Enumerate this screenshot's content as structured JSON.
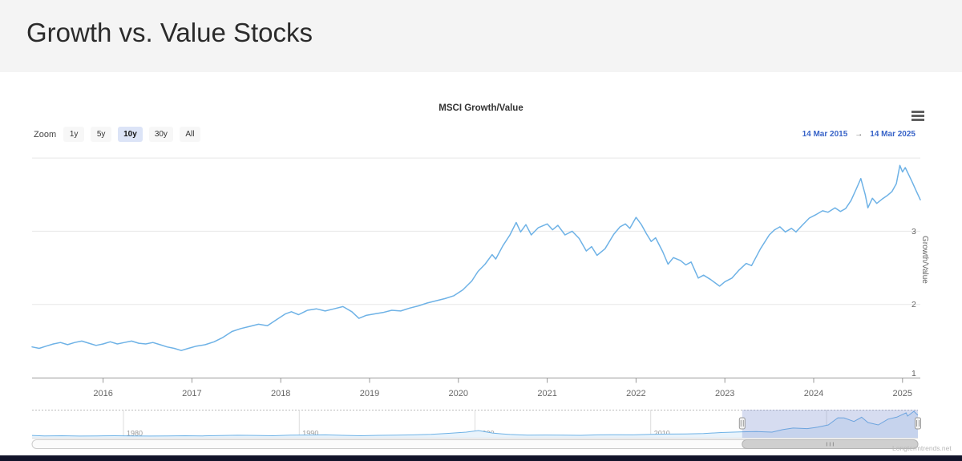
{
  "header": {
    "title": "Growth vs. Value Stocks"
  },
  "chart": {
    "title": "MSCI Growth/Value",
    "range_selector": {
      "zoom_label": "Zoom",
      "buttons": [
        {
          "label": "1y",
          "selected": false
        },
        {
          "label": "5y",
          "selected": false
        },
        {
          "label": "10y",
          "selected": true
        },
        {
          "label": "30y",
          "selected": false
        },
        {
          "label": "All",
          "selected": false
        }
      ],
      "from_date": "14 Mar 2015",
      "arrow": "→",
      "to_date": "14 Mar 2025"
    },
    "y_axis_title": "Growth/Value",
    "watermark": "Longtermtrends.net",
    "colors": {
      "line": "#6eb2e6",
      "grid": "#e7e7e7",
      "axis": "#999999",
      "tick_label": "#666666",
      "selection_mask": "rgba(108,128,200,0.28)",
      "nav_fill": "#e9f3fb",
      "date_text": "#3964c8",
      "selected_button_bg": "#dce4f7"
    }
  },
  "chart_data": {
    "type": "line",
    "title": "MSCI Growth/Value",
    "ylabel": "Growth/Value",
    "xlim": [
      2015.2,
      2025.2
    ],
    "ylim": [
      1,
      4.1
    ],
    "y_ticks": [
      1,
      2,
      3
    ],
    "grid_values": [
      2,
      3,
      4
    ],
    "x_ticks": [
      2016,
      2017,
      2018,
      2019,
      2020,
      2021,
      2022,
      2023,
      2024,
      2025
    ],
    "series": [
      {
        "name": "MSCI Growth/Value",
        "points": [
          [
            2015.2,
            1.42
          ],
          [
            2015.28,
            1.4
          ],
          [
            2015.36,
            1.43
          ],
          [
            2015.44,
            1.46
          ],
          [
            2015.52,
            1.48
          ],
          [
            2015.6,
            1.45
          ],
          [
            2015.68,
            1.48
          ],
          [
            2015.76,
            1.5
          ],
          [
            2015.84,
            1.47
          ],
          [
            2015.92,
            1.44
          ],
          [
            2016.0,
            1.46
          ],
          [
            2016.08,
            1.49
          ],
          [
            2016.16,
            1.46
          ],
          [
            2016.24,
            1.48
          ],
          [
            2016.32,
            1.5
          ],
          [
            2016.4,
            1.47
          ],
          [
            2016.48,
            1.46
          ],
          [
            2016.56,
            1.48
          ],
          [
            2016.64,
            1.45
          ],
          [
            2016.72,
            1.42
          ],
          [
            2016.8,
            1.4
          ],
          [
            2016.88,
            1.37
          ],
          [
            2016.96,
            1.4
          ],
          [
            2017.05,
            1.43
          ],
          [
            2017.15,
            1.45
          ],
          [
            2017.25,
            1.49
          ],
          [
            2017.35,
            1.55
          ],
          [
            2017.45,
            1.63
          ],
          [
            2017.55,
            1.67
          ],
          [
            2017.65,
            1.7
          ],
          [
            2017.75,
            1.73
          ],
          [
            2017.85,
            1.71
          ],
          [
            2017.95,
            1.79
          ],
          [
            2018.05,
            1.87
          ],
          [
            2018.12,
            1.9
          ],
          [
            2018.2,
            1.86
          ],
          [
            2018.3,
            1.92
          ],
          [
            2018.4,
            1.94
          ],
          [
            2018.5,
            1.91
          ],
          [
            2018.6,
            1.94
          ],
          [
            2018.7,
            1.97
          ],
          [
            2018.8,
            1.9
          ],
          [
            2018.88,
            1.81
          ],
          [
            2018.96,
            1.85
          ],
          [
            2019.05,
            1.87
          ],
          [
            2019.15,
            1.89
          ],
          [
            2019.25,
            1.92
          ],
          [
            2019.35,
            1.91
          ],
          [
            2019.45,
            1.95
          ],
          [
            2019.55,
            1.98
          ],
          [
            2019.65,
            2.02
          ],
          [
            2019.75,
            2.05
          ],
          [
            2019.85,
            2.08
          ],
          [
            2019.95,
            2.12
          ],
          [
            2020.05,
            2.2
          ],
          [
            2020.15,
            2.32
          ],
          [
            2020.22,
            2.45
          ],
          [
            2020.3,
            2.55
          ],
          [
            2020.38,
            2.68
          ],
          [
            2020.42,
            2.62
          ],
          [
            2020.5,
            2.8
          ],
          [
            2020.58,
            2.95
          ],
          [
            2020.65,
            3.12
          ],
          [
            2020.7,
            2.99
          ],
          [
            2020.76,
            3.09
          ],
          [
            2020.82,
            2.95
          ],
          [
            2020.9,
            3.05
          ],
          [
            2021.0,
            3.1
          ],
          [
            2021.06,
            3.02
          ],
          [
            2021.12,
            3.08
          ],
          [
            2021.2,
            2.95
          ],
          [
            2021.28,
            3.0
          ],
          [
            2021.36,
            2.9
          ],
          [
            2021.44,
            2.73
          ],
          [
            2021.5,
            2.79
          ],
          [
            2021.56,
            2.67
          ],
          [
            2021.65,
            2.76
          ],
          [
            2021.75,
            2.96
          ],
          [
            2021.82,
            3.06
          ],
          [
            2021.88,
            3.1
          ],
          [
            2021.93,
            3.04
          ],
          [
            2022.0,
            3.19
          ],
          [
            2022.06,
            3.09
          ],
          [
            2022.12,
            2.96
          ],
          [
            2022.17,
            2.86
          ],
          [
            2022.22,
            2.91
          ],
          [
            2022.3,
            2.72
          ],
          [
            2022.36,
            2.55
          ],
          [
            2022.42,
            2.64
          ],
          [
            2022.5,
            2.6
          ],
          [
            2022.56,
            2.54
          ],
          [
            2022.62,
            2.58
          ],
          [
            2022.7,
            2.36
          ],
          [
            2022.76,
            2.4
          ],
          [
            2022.84,
            2.34
          ],
          [
            2022.94,
            2.25
          ],
          [
            2023.0,
            2.31
          ],
          [
            2023.08,
            2.36
          ],
          [
            2023.16,
            2.47
          ],
          [
            2023.24,
            2.56
          ],
          [
            2023.3,
            2.53
          ],
          [
            2023.4,
            2.76
          ],
          [
            2023.5,
            2.95
          ],
          [
            2023.56,
            3.02
          ],
          [
            2023.62,
            3.06
          ],
          [
            2023.68,
            2.99
          ],
          [
            2023.75,
            3.04
          ],
          [
            2023.8,
            2.99
          ],
          [
            2023.87,
            3.08
          ],
          [
            2023.95,
            3.18
          ],
          [
            2024.03,
            3.23
          ],
          [
            2024.1,
            3.28
          ],
          [
            2024.16,
            3.26
          ],
          [
            2024.24,
            3.32
          ],
          [
            2024.3,
            3.27
          ],
          [
            2024.36,
            3.31
          ],
          [
            2024.42,
            3.42
          ],
          [
            2024.48,
            3.58
          ],
          [
            2024.53,
            3.72
          ],
          [
            2024.58,
            3.5
          ],
          [
            2024.61,
            3.32
          ],
          [
            2024.66,
            3.45
          ],
          [
            2024.71,
            3.38
          ],
          [
            2024.77,
            3.44
          ],
          [
            2024.83,
            3.49
          ],
          [
            2024.88,
            3.54
          ],
          [
            2024.93,
            3.65
          ],
          [
            2024.97,
            3.9
          ],
          [
            2025.0,
            3.81
          ],
          [
            2025.03,
            3.87
          ],
          [
            2025.07,
            3.77
          ],
          [
            2025.11,
            3.67
          ],
          [
            2025.15,
            3.56
          ],
          [
            2025.2,
            3.43
          ]
        ]
      }
    ],
    "navigator": {
      "xlim": [
        1974.8,
        2025.2
      ],
      "ylim": [
        0.8,
        4.0
      ],
      "decades": [
        1980,
        1990,
        2000,
        2010,
        2020
      ],
      "selection": [
        2015.2,
        2025.2
      ],
      "points": [
        [
          1974.8,
          0.98
        ],
        [
          1975.5,
          0.93
        ],
        [
          1976.5,
          0.95
        ],
        [
          1977.5,
          0.91
        ],
        [
          1978.5,
          0.93
        ],
        [
          1979.5,
          0.95
        ],
        [
          1980.5,
          0.93
        ],
        [
          1981.5,
          0.91
        ],
        [
          1982.5,
          0.92
        ],
        [
          1983.5,
          0.95
        ],
        [
          1984.5,
          0.93
        ],
        [
          1985.5,
          0.97
        ],
        [
          1986.5,
          1.0
        ],
        [
          1987.5,
          0.98
        ],
        [
          1988.5,
          0.95
        ],
        [
          1989.5,
          1.01
        ],
        [
          1990.5,
          1.03
        ],
        [
          1991.5,
          1.05
        ],
        [
          1992.5,
          0.99
        ],
        [
          1993.5,
          0.95
        ],
        [
          1994.5,
          0.99
        ],
        [
          1995.5,
          1.02
        ],
        [
          1996.5,
          1.05
        ],
        [
          1997.5,
          1.12
        ],
        [
          1998.5,
          1.24
        ],
        [
          1999.5,
          1.38
        ],
        [
          2000.2,
          1.58
        ],
        [
          2000.6,
          1.42
        ],
        [
          2001.0,
          1.28
        ],
        [
          2001.5,
          1.18
        ],
        [
          2002.0,
          1.1
        ],
        [
          2002.5,
          1.05
        ],
        [
          2003.0,
          1.01
        ],
        [
          2004.0,
          1.03
        ],
        [
          2005.0,
          1.01
        ],
        [
          2006.0,
          0.99
        ],
        [
          2007.0,
          1.05
        ],
        [
          2008.0,
          1.07
        ],
        [
          2009.0,
          1.05
        ],
        [
          2010.0,
          1.11
        ],
        [
          2011.0,
          1.15
        ],
        [
          2012.0,
          1.17
        ],
        [
          2013.0,
          1.21
        ],
        [
          2014.0,
          1.33
        ],
        [
          2015.2,
          1.42
        ],
        [
          2016.0,
          1.46
        ],
        [
          2016.9,
          1.38
        ],
        [
          2017.5,
          1.68
        ],
        [
          2018.1,
          1.88
        ],
        [
          2018.9,
          1.81
        ],
        [
          2019.5,
          1.98
        ],
        [
          2020.1,
          2.25
        ],
        [
          2020.65,
          3.12
        ],
        [
          2021.0,
          3.1
        ],
        [
          2021.56,
          2.67
        ],
        [
          2022.0,
          3.19
        ],
        [
          2022.36,
          2.55
        ],
        [
          2022.94,
          2.25
        ],
        [
          2023.5,
          2.95
        ],
        [
          2024.0,
          3.2
        ],
        [
          2024.53,
          3.72
        ],
        [
          2024.61,
          3.32
        ],
        [
          2024.97,
          3.9
        ],
        [
          2025.2,
          3.43
        ]
      ]
    }
  }
}
